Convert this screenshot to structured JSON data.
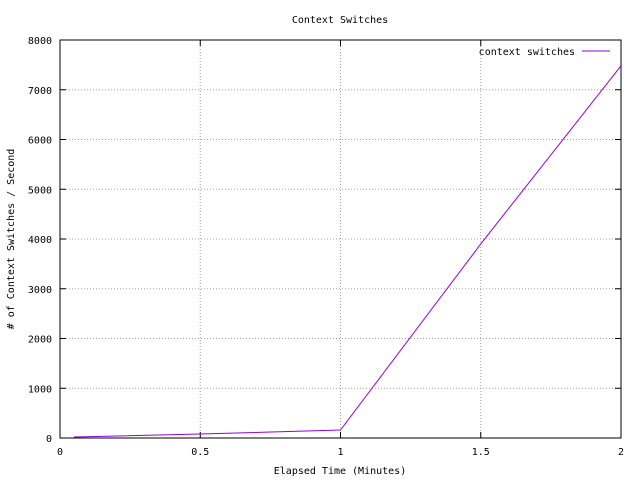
{
  "chart_data": {
    "type": "line",
    "title": "Context Switches",
    "xlabel": "Elapsed Time (Minutes)",
    "ylabel": "# of Context Switches / Second",
    "xlim": [
      0,
      2
    ],
    "ylim": [
      0,
      8000
    ],
    "xticks": [
      0,
      0.5,
      1,
      1.5,
      2
    ],
    "xtick_labels": [
      "0",
      "0.5",
      "1",
      "1.5",
      "2"
    ],
    "yticks": [
      0,
      1000,
      2000,
      3000,
      4000,
      5000,
      6000,
      7000,
      8000
    ],
    "ytick_labels": [
      "0",
      "1000",
      "2000",
      "3000",
      "4000",
      "5000",
      "6000",
      "7000",
      "8000"
    ],
    "grid": true,
    "legend_position": "top-right",
    "series": [
      {
        "name": "context switches",
        "color": "#9400d3",
        "x": [
          0.05,
          0.5,
          1.0,
          1.5,
          2.0
        ],
        "y": [
          20,
          80,
          160,
          3900,
          7480
        ]
      }
    ]
  }
}
